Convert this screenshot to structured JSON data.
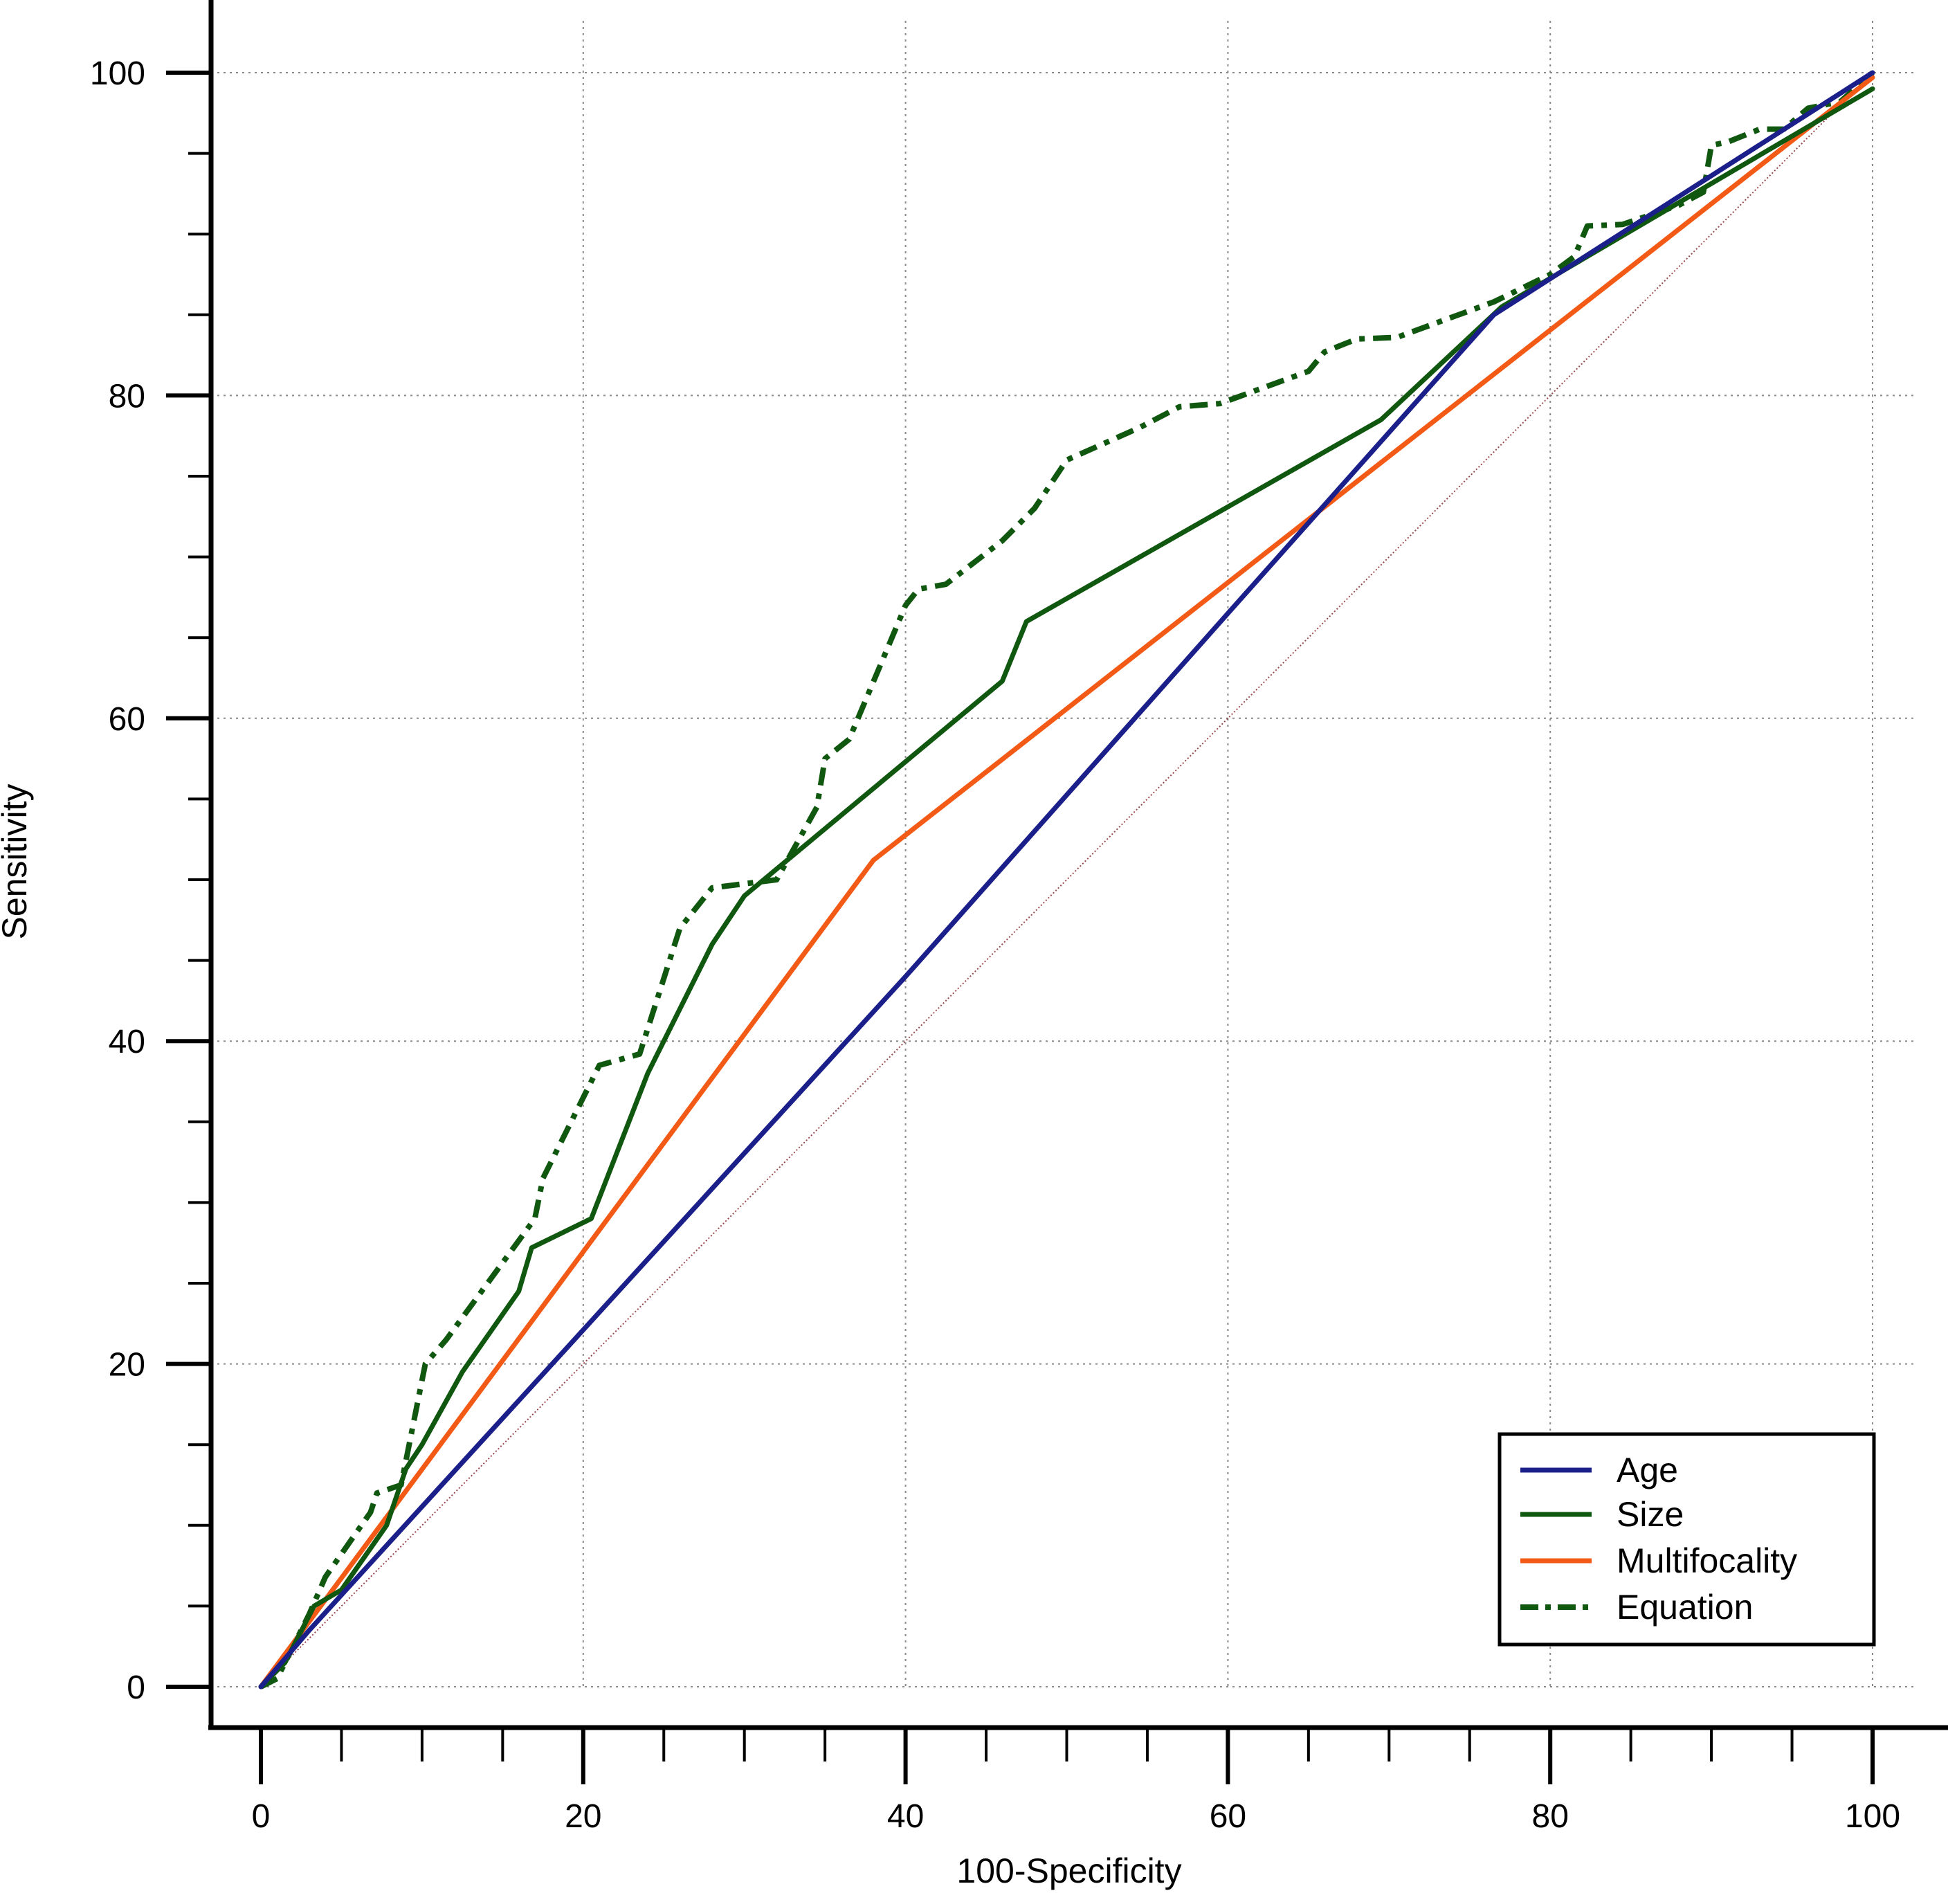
{
  "chart_data": {
    "type": "line",
    "xlabel": "100-Specificity",
    "ylabel": "Sensitivity",
    "xlim": [
      0,
      100
    ],
    "ylim": [
      0,
      100
    ],
    "x_ticks": [
      "0",
      "20",
      "40",
      "60",
      "80",
      "100"
    ],
    "y_ticks": [
      "0",
      "20",
      "40",
      "60",
      "80",
      "100"
    ],
    "grid": true,
    "legend_position": "bottom-right",
    "reference_line": {
      "x": [
        0,
        100
      ],
      "y": [
        0,
        100
      ],
      "color": "#9b4a52"
    },
    "series": [
      {
        "name": "Age",
        "color": "#1b1f8a",
        "style": "solid",
        "points": [
          [
            0,
            0
          ],
          [
            3,
            3.5
          ],
          [
            40,
            44
          ],
          [
            60,
            66.5
          ],
          [
            76.5,
            85
          ],
          [
            100,
            100
          ]
        ]
      },
      {
        "name": "Size",
        "color": "#10570f",
        "style": "solid",
        "points": [
          [
            0,
            0
          ],
          [
            1.5,
            1.5
          ],
          [
            3.3,
            5
          ],
          [
            5,
            6
          ],
          [
            7.8,
            10
          ],
          [
            9,
            13.5
          ],
          [
            10,
            15
          ],
          [
            12.5,
            19.5
          ],
          [
            16,
            24.5
          ],
          [
            16.8,
            27.2
          ],
          [
            20.5,
            29
          ],
          [
            24,
            38
          ],
          [
            28,
            46
          ],
          [
            30,
            49
          ],
          [
            46,
            62.3
          ],
          [
            47.5,
            66
          ],
          [
            69.5,
            78.5
          ],
          [
            77,
            85.5
          ],
          [
            100,
            99
          ]
        ]
      },
      {
        "name": "Multifocality",
        "color": "#f35a16",
        "style": "solid",
        "points": [
          [
            0,
            0
          ],
          [
            38,
            51.2
          ],
          [
            100,
            99.7
          ]
        ]
      },
      {
        "name": "Equation",
        "color": "#10570f",
        "style": "dash-dot",
        "points": [
          [
            0,
            0
          ],
          [
            1,
            0.5
          ],
          [
            3,
            4.5
          ],
          [
            4,
            6.8
          ],
          [
            6.8,
            10.8
          ],
          [
            7.2,
            12
          ],
          [
            8.7,
            12.5
          ],
          [
            10.2,
            20
          ],
          [
            11.5,
            21.5
          ],
          [
            17,
            29
          ],
          [
            17.5,
            31.5
          ],
          [
            21,
            38.5
          ],
          [
            23.5,
            39.2
          ],
          [
            26,
            47
          ],
          [
            28,
            49.5
          ],
          [
            32,
            50
          ],
          [
            34.5,
            54.5
          ],
          [
            35,
            57.5
          ],
          [
            36.5,
            58.7
          ],
          [
            40,
            67
          ],
          [
            40.8,
            68
          ],
          [
            42.5,
            68.3
          ],
          [
            46,
            71
          ],
          [
            48,
            73
          ],
          [
            50,
            76
          ],
          [
            54.5,
            78
          ],
          [
            57,
            79.3
          ],
          [
            59.5,
            79.5
          ],
          [
            65,
            81.5
          ],
          [
            66,
            82.7
          ],
          [
            68,
            83.5
          ],
          [
            70.5,
            83.6
          ],
          [
            76.5,
            85.8
          ],
          [
            80,
            87.5
          ],
          [
            81.5,
            88.6
          ],
          [
            82.3,
            90.5
          ],
          [
            84.5,
            90.6
          ],
          [
            88,
            91.8
          ],
          [
            89.5,
            92.6
          ],
          [
            90,
            95.5
          ],
          [
            91,
            95.7
          ],
          [
            93,
            96.5
          ],
          [
            94.5,
            96.5
          ],
          [
            96,
            97.8
          ],
          [
            98,
            98.2
          ],
          [
            100,
            100
          ]
        ]
      }
    ]
  }
}
